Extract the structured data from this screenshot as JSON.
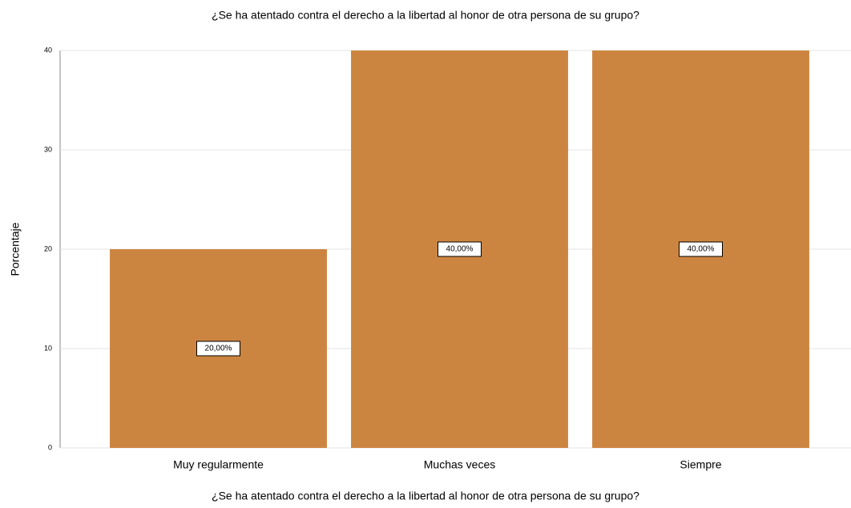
{
  "chart_data": {
    "type": "bar",
    "title": "¿Se ha atentado contra el derecho a la libertad al honor de otra persona de su grupo?",
    "x_label": "¿Se ha atentado contra el derecho a la libertad al honor de otra persona de su grupo?",
    "y_label": "Porcentaje",
    "categories": [
      "Muy regularmente",
      "Muchas veces",
      "Siempre"
    ],
    "values": [
      20,
      40,
      40
    ],
    "value_labels": [
      "20,00%",
      "40,00%",
      "40,00%"
    ],
    "color": "#cc8540",
    "ylim": [
      0,
      40
    ],
    "yticks": [
      0,
      10,
      20,
      30,
      40
    ],
    "grid": true
  }
}
